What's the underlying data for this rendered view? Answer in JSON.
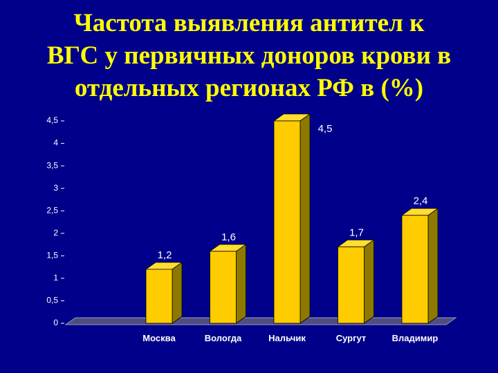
{
  "chart_data": {
    "type": "bar3d",
    "title": [
      "Частота выявления антител к",
      "ВГС у первичных доноров крови в",
      "отдельных регионах РФ в (%)"
    ],
    "categories": [
      "Москва",
      "Вологда",
      "Нальчик",
      "Сургут",
      "Владимир"
    ],
    "values": [
      1.2,
      1.6,
      4.5,
      1.7,
      2.4
    ],
    "value_labels": [
      "1,2",
      "1,6",
      "4,5",
      "1,7",
      "2,4"
    ],
    "color": "#ffcc00",
    "ylim": [
      0,
      4.5
    ],
    "yticks": [
      0,
      {
        "value": 0.5,
        "label": "0,5"
      },
      1,
      {
        "value": 1.5,
        "label": "1,5"
      },
      2,
      {
        "value": 2.5,
        "label": "2,5"
      },
      3,
      {
        "value": 3.5,
        "label": "3,5"
      },
      4,
      {
        "value": 4.5,
        "label": "4,5"
      }
    ],
    "grid": false
  }
}
